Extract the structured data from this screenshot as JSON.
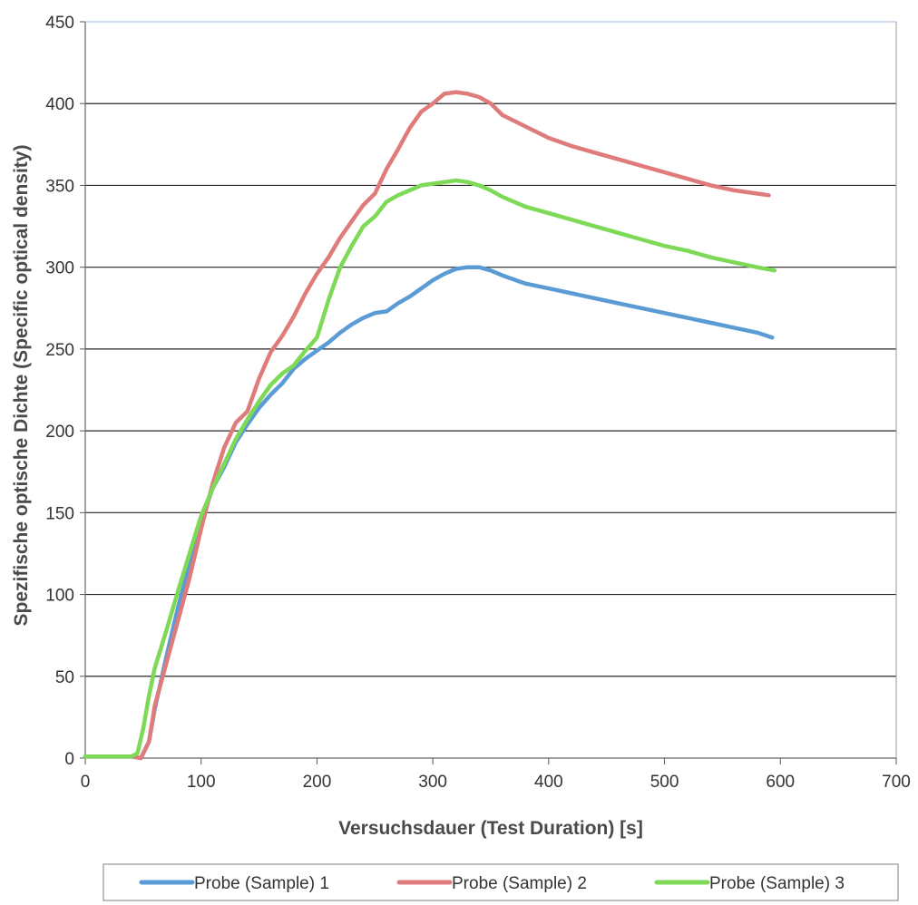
{
  "chart_data": {
    "type": "line",
    "title": "",
    "xlabel": "Versuchsdauer (Test Duration) [s]",
    "ylabel": "Spezifische optische Dichte (Specific optical density)",
    "xlim": [
      0,
      700
    ],
    "ylim": [
      0,
      450
    ],
    "x_ticks": [
      0,
      100,
      200,
      300,
      400,
      500,
      600,
      700
    ],
    "y_ticks": [
      0,
      50,
      100,
      150,
      200,
      250,
      300,
      350,
      400,
      450
    ],
    "grid": "horizontal",
    "legend_position": "bottom",
    "series": [
      {
        "name": "Probe (Sample) 1",
        "color": "#5b9bd5",
        "x": [
          0,
          20,
          40,
          48,
          55,
          60,
          70,
          80,
          90,
          100,
          110,
          120,
          130,
          140,
          150,
          160,
          170,
          180,
          190,
          200,
          210,
          220,
          230,
          240,
          250,
          260,
          270,
          280,
          290,
          300,
          310,
          320,
          330,
          340,
          350,
          360,
          380,
          400,
          420,
          440,
          460,
          480,
          500,
          520,
          540,
          560,
          580,
          593
        ],
        "y": [
          1,
          1,
          1,
          0,
          10,
          30,
          62,
          92,
          118,
          145,
          165,
          178,
          193,
          204,
          214,
          222,
          229,
          238,
          244,
          249,
          254,
          260,
          265,
          269,
          272,
          273,
          278,
          282,
          287,
          292,
          296,
          299,
          300,
          300,
          298,
          295,
          290,
          287,
          284,
          281,
          278,
          275,
          272,
          269,
          266,
          263,
          260,
          257
        ]
      },
      {
        "name": "Probe (Sample) 2",
        "color": "#e07b7b",
        "x": [
          0,
          20,
          40,
          48,
          55,
          60,
          70,
          80,
          90,
          100,
          110,
          120,
          130,
          140,
          150,
          160,
          170,
          180,
          190,
          200,
          210,
          220,
          230,
          240,
          250,
          260,
          270,
          280,
          290,
          300,
          310,
          320,
          330,
          340,
          350,
          360,
          380,
          400,
          420,
          440,
          460,
          480,
          500,
          520,
          540,
          560,
          580,
          590
        ],
        "y": [
          1,
          1,
          1,
          0,
          10,
          32,
          58,
          84,
          110,
          140,
          168,
          190,
          205,
          212,
          232,
          248,
          258,
          270,
          284,
          296,
          306,
          318,
          328,
          338,
          345,
          360,
          372,
          385,
          395,
          400,
          406,
          407,
          406,
          404,
          400,
          393,
          386,
          379,
          374,
          370,
          366,
          362,
          358,
          354,
          350,
          347,
          345,
          344
        ]
      },
      {
        "name": "Probe (Sample) 3",
        "color": "#7ed957",
        "x": [
          0,
          20,
          40,
          45,
          50,
          55,
          60,
          70,
          80,
          90,
          100,
          110,
          120,
          130,
          140,
          150,
          160,
          170,
          180,
          190,
          200,
          210,
          220,
          230,
          240,
          250,
          260,
          270,
          280,
          290,
          300,
          310,
          320,
          330,
          340,
          350,
          360,
          380,
          400,
          420,
          440,
          460,
          480,
          500,
          520,
          540,
          560,
          580,
          595
        ],
        "y": [
          1,
          1,
          1,
          3,
          18,
          38,
          55,
          78,
          102,
          125,
          148,
          165,
          180,
          195,
          207,
          218,
          228,
          235,
          240,
          249,
          257,
          280,
          300,
          313,
          325,
          331,
          340,
          344,
          347,
          350,
          351,
          352,
          353,
          352,
          350,
          347,
          343,
          337,
          333,
          329,
          325,
          321,
          317,
          313,
          310,
          306,
          303,
          300,
          298
        ]
      }
    ]
  }
}
